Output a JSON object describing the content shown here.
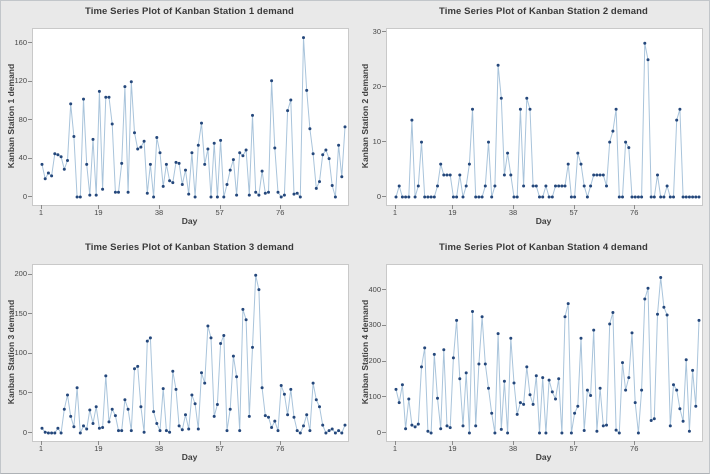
{
  "colors": {
    "background": "#e9e9e9",
    "plot_background": "#ffffff",
    "plot_border": "#c9c9c9",
    "line": "#a9c4db",
    "marker": "#24477b",
    "title_text": "#3a3a3a",
    "tick_text": "#484848"
  },
  "chart_data": [
    {
      "type": "line",
      "title": "Time Series Plot of Kanban Station 1 demand",
      "ylabel": "Kanban Station 1 demand",
      "xlabel": "Day",
      "x_start": 1,
      "xticks": [
        1,
        19,
        38,
        57,
        76
      ],
      "yticks": [
        0,
        40,
        80,
        120,
        160
      ],
      "ylim": [
        0,
        175
      ],
      "y_top_value": 175,
      "grid": false,
      "legend": "none",
      "values": [
        34,
        19,
        25,
        22,
        45,
        44,
        42,
        29,
        38,
        97,
        63,
        0,
        0,
        102,
        34,
        2,
        60,
        2,
        110,
        8,
        104,
        104,
        76,
        5,
        5,
        35,
        115,
        5,
        120,
        67,
        50,
        52,
        58,
        4,
        34,
        0,
        62,
        46,
        11,
        34,
        17,
        15,
        36,
        35,
        13,
        28,
        3,
        46,
        0,
        54,
        77,
        34,
        50,
        0,
        56,
        0,
        59,
        0,
        13,
        28,
        39,
        2,
        46,
        43,
        49,
        2,
        85,
        5,
        2,
        27,
        4,
        5,
        121,
        51,
        5,
        0,
        2,
        90,
        101,
        3,
        4,
        0,
        166,
        111,
        71,
        45,
        9,
        16,
        44,
        49,
        40,
        12,
        0,
        54,
        21,
        73
      ]
    },
    {
      "type": "line",
      "title": "Time Series Plot of Kanban Station 2 demand",
      "ylabel": "Kanban Station 2 demand",
      "xlabel": "Day",
      "x_start": 1,
      "xticks": [
        1,
        19,
        38,
        57,
        76
      ],
      "yticks": [
        0,
        10,
        20,
        30
      ],
      "ylim": [
        0,
        30.6
      ],
      "y_top_value": 30.6,
      "grid": false,
      "legend": "none",
      "values": [
        0,
        2,
        0,
        0,
        0,
        14,
        0,
        2,
        10,
        0,
        0,
        0,
        0,
        2,
        6,
        4,
        4,
        4,
        0,
        0,
        4,
        0,
        2,
        6,
        16,
        0,
        0,
        0,
        2,
        10,
        0,
        2,
        24,
        18,
        4,
        8,
        4,
        0,
        0,
        16,
        2,
        18,
        16,
        2,
        2,
        0,
        0,
        2,
        0,
        0,
        2,
        2,
        2,
        2,
        6,
        0,
        0,
        8,
        6,
        2,
        0,
        2,
        4,
        4,
        4,
        4,
        2,
        10,
        12,
        16,
        0,
        0,
        10,
        9,
        0,
        0,
        0,
        0,
        28,
        25,
        0,
        0,
        4,
        0,
        0,
        2,
        0,
        0,
        14,
        16,
        0,
        0,
        0,
        0,
        0,
        0
      ]
    },
    {
      "type": "line",
      "title": "Time Series Plot of Kanban Station 3 demand",
      "ylabel": "Kanban Station 3 demand",
      "xlabel": "Day",
      "x_start": 1,
      "xticks": [
        1,
        19,
        38,
        57,
        76
      ],
      "yticks": [
        0,
        50,
        100,
        150,
        200
      ],
      "ylim": [
        0,
        212
      ],
      "y_top_value": 212,
      "grid": false,
      "legend": "none",
      "values": [
        6,
        1,
        0,
        0,
        0,
        6,
        0,
        30,
        48,
        21,
        8,
        57,
        0,
        9,
        5,
        29,
        12,
        33,
        6,
        7,
        72,
        14,
        30,
        22,
        3,
        3,
        42,
        30,
        3,
        81,
        84,
        33,
        1,
        116,
        120,
        27,
        12,
        3,
        56,
        3,
        1,
        78,
        55,
        9,
        4,
        23,
        5,
        48,
        37,
        5,
        76,
        63,
        135,
        120,
        21,
        36,
        113,
        123,
        3,
        30,
        97,
        71,
        3,
        156,
        143,
        21,
        108,
        199,
        181,
        57,
        22,
        20,
        7,
        15,
        3,
        60,
        49,
        23,
        55,
        20,
        3,
        0,
        9,
        23,
        3,
        63,
        42,
        33,
        10,
        0,
        3,
        5,
        0,
        3,
        0,
        10
      ]
    },
    {
      "type": "line",
      "title": "Time Series Plot of Kanban Station 4 demand",
      "ylabel": "Kanban Station 4 demand",
      "xlabel": "Day",
      "x_start": 1,
      "xticks": [
        1,
        19,
        38,
        57,
        76
      ],
      "yticks": [
        0,
        100,
        200,
        300,
        400
      ],
      "ylim": [
        0,
        470
      ],
      "y_top_value": 470,
      "grid": false,
      "legend": "none",
      "values": [
        122,
        85,
        135,
        12,
        95,
        22,
        17,
        25,
        185,
        238,
        5,
        0,
        220,
        97,
        12,
        233,
        20,
        15,
        210,
        315,
        152,
        20,
        168,
        0,
        340,
        20,
        193,
        325,
        193,
        125,
        55,
        0,
        278,
        10,
        145,
        0,
        265,
        140,
        52,
        85,
        80,
        185,
        107,
        80,
        160,
        0,
        155,
        0,
        148,
        115,
        95,
        152,
        0,
        325,
        362,
        0,
        55,
        75,
        265,
        7,
        120,
        105,
        288,
        5,
        125,
        20,
        22,
        305,
        337,
        8,
        0,
        197,
        120,
        155,
        280,
        85,
        0,
        120,
        375,
        405,
        35,
        40,
        332,
        435,
        352,
        330,
        20,
        135,
        120,
        68,
        33,
        205,
        5,
        175,
        75,
        315
      ]
    }
  ]
}
